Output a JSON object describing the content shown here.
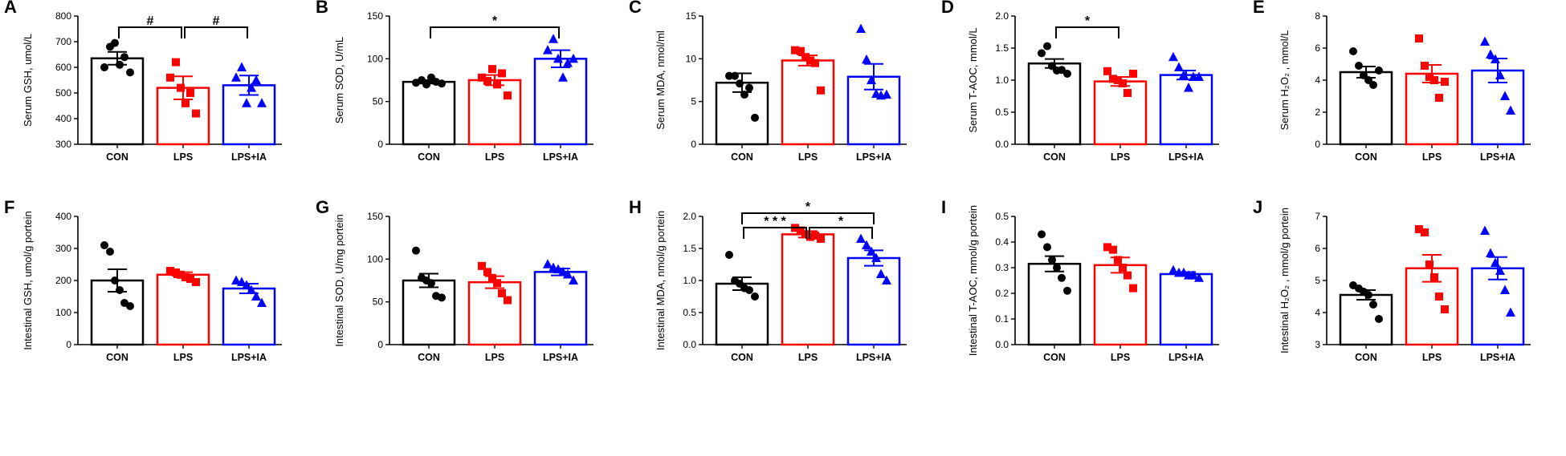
{
  "colors": {
    "CON": "#000000",
    "LPS": "#ff0000",
    "LPS+IA": "#0000ff",
    "axis": "#000000"
  },
  "chart_data": [
    {
      "id": "A",
      "type": "bar",
      "title": "",
      "ylabel": "Serum GSH, umol/L",
      "ylim": [
        300,
        800
      ],
      "yticks": [
        300,
        400,
        500,
        600,
        700,
        800
      ],
      "categories": [
        "CON",
        "LPS",
        "LPS+IA"
      ],
      "markers": [
        "circle",
        "square",
        "triangle"
      ],
      "means": [
        635,
        520,
        530
      ],
      "sem": [
        25,
        45,
        38
      ],
      "points": [
        [
          600,
          680,
          695,
          610,
          640,
          580
        ],
        [
          560,
          620,
          520,
          460,
          500,
          420
        ],
        [
          560,
          600,
          460,
          520,
          550,
          460
        ]
      ],
      "annotations": [
        {
          "from": 0,
          "to": 1,
          "label": "#",
          "level": 0
        },
        {
          "from": 1,
          "to": 2,
          "label": "#",
          "level": 0
        }
      ]
    },
    {
      "id": "B",
      "type": "bar",
      "title": "",
      "ylabel": "Serum SOD, U/mL",
      "ylim": [
        0,
        150
      ],
      "yticks": [
        0,
        50,
        100,
        150
      ],
      "categories": [
        "CON",
        "LPS",
        "LPS+IA"
      ],
      "markers": [
        "circle",
        "square",
        "triangle"
      ],
      "means": [
        73,
        75,
        100
      ],
      "sem": [
        2,
        6,
        10
      ],
      "points": [
        [
          72,
          75,
          70,
          78,
          73,
          71
        ],
        [
          78,
          74,
          88,
          70,
          83,
          57
        ],
        [
          110,
          123,
          100,
          78,
          95,
          100
        ]
      ],
      "annotations": [
        {
          "from": 0,
          "to": 2,
          "label": "*",
          "level": 0
        }
      ]
    },
    {
      "id": "C",
      "type": "bar",
      "title": "",
      "ylabel": "Serum MDA, nmol/ml",
      "ylim": [
        0,
        15
      ],
      "yticks": [
        0,
        5,
        10,
        15
      ],
      "categories": [
        "CON",
        "LPS",
        "LPS+IA"
      ],
      "markers": [
        "circle",
        "square",
        "triangle"
      ],
      "means": [
        7.2,
        9.8,
        7.9
      ],
      "sem": [
        1.1,
        0.6,
        1.5
      ],
      "points": [
        [
          8.0,
          8.0,
          7.1,
          5.8,
          6.6,
          3.1
        ],
        [
          11.0,
          10.9,
          10.2,
          9.8,
          9.5,
          6.3
        ],
        [
          13.5,
          9.9,
          7.5,
          5.9,
          5.7,
          5.8
        ]
      ],
      "annotations": []
    },
    {
      "id": "D",
      "type": "bar",
      "title": "",
      "ylabel": "Serum T-AOC, mmol/L",
      "ylim": [
        0.0,
        2.0
      ],
      "yticks": [
        0.0,
        0.5,
        1.0,
        1.5,
        2.0
      ],
      "categories": [
        "CON",
        "LPS",
        "LPS+IA"
      ],
      "markers": [
        "circle",
        "square",
        "triangle"
      ],
      "means": [
        1.26,
        0.98,
        1.08
      ],
      "sem": [
        0.07,
        0.07,
        0.07
      ],
      "points": [
        [
          1.42,
          1.53,
          1.22,
          1.15,
          1.16,
          1.1
        ],
        [
          1.14,
          1.02,
          1.0,
          0.95,
          0.8,
          1.1
        ],
        [
          1.36,
          1.2,
          1.08,
          0.88,
          1.05,
          1.05
        ]
      ],
      "annotations": [
        {
          "from": 0,
          "to": 1,
          "label": "*",
          "level": 0
        }
      ]
    },
    {
      "id": "E",
      "type": "bar",
      "title": "",
      "ylabel": "Serum H₂O₂ , mmol/L",
      "ylim": [
        0,
        8
      ],
      "yticks": [
        0,
        2,
        4,
        6,
        8
      ],
      "categories": [
        "CON",
        "LPS",
        "LPS+IA"
      ],
      "markers": [
        "circle",
        "square",
        "triangle"
      ],
      "means": [
        4.5,
        4.4,
        4.6
      ],
      "sem": [
        0.35,
        0.55,
        0.75
      ],
      "points": [
        [
          5.8,
          4.9,
          4.3,
          4.0,
          3.7,
          4.6
        ],
        [
          6.6,
          4.9,
          4.2,
          4.0,
          2.9,
          3.9
        ],
        [
          6.4,
          5.6,
          5.3,
          4.3,
          3.0,
          2.1
        ]
      ],
      "annotations": []
    },
    {
      "id": "F",
      "type": "bar",
      "title": "",
      "ylabel": "Intestinal GSH, umol/g portein",
      "ylim": [
        0,
        400
      ],
      "yticks": [
        0,
        100,
        200,
        300,
        400
      ],
      "categories": [
        "CON",
        "LPS",
        "LPS+IA"
      ],
      "markers": [
        "circle",
        "square",
        "triangle"
      ],
      "means": [
        200,
        218,
        175
      ],
      "sem": [
        35,
        8,
        15
      ],
      "points": [
        [
          310,
          290,
          200,
          170,
          130,
          120
        ],
        [
          230,
          225,
          218,
          210,
          205,
          195
        ],
        [
          200,
          195,
          185,
          170,
          150,
          130
        ]
      ],
      "annotations": []
    },
    {
      "id": "G",
      "type": "bar",
      "title": "",
      "ylabel": "Intestinal SOD, U/mg portein",
      "ylim": [
        0,
        150
      ],
      "yticks": [
        0,
        50,
        100,
        150
      ],
      "categories": [
        "CON",
        "LPS",
        "LPS+IA"
      ],
      "markers": [
        "circle",
        "square",
        "triangle"
      ],
      "means": [
        75,
        73,
        85
      ],
      "sem": [
        8,
        7,
        4
      ],
      "points": [
        [
          110,
          78,
          75,
          72,
          57,
          55
        ],
        [
          92,
          85,
          78,
          72,
          60,
          52
        ],
        [
          94,
          90,
          88,
          85,
          82,
          75
        ]
      ],
      "annotations": []
    },
    {
      "id": "H",
      "type": "bar",
      "title": "",
      "ylabel": "Intestinal MDA, nmol/g portein",
      "ylim": [
        0.0,
        2.0
      ],
      "yticks": [
        0.0,
        0.5,
        1.0,
        1.5,
        2.0
      ],
      "categories": [
        "CON",
        "LPS",
        "LPS+IA"
      ],
      "markers": [
        "circle",
        "square",
        "triangle"
      ],
      "means": [
        0.95,
        1.72,
        1.35
      ],
      "sem": [
        0.1,
        0.05,
        0.12
      ],
      "points": [
        [
          1.4,
          1.0,
          0.95,
          0.88,
          0.85,
          0.75
        ],
        [
          1.82,
          1.78,
          1.72,
          1.68,
          1.7,
          1.65
        ],
        [
          1.65,
          1.55,
          1.45,
          1.35,
          1.1,
          1.0
        ]
      ],
      "annotations": [
        {
          "from": 0,
          "to": 2,
          "label": "*",
          "level": 1
        },
        {
          "from": 0,
          "to": 1,
          "label": "* * *",
          "level": 0
        },
        {
          "from": 1,
          "to": 2,
          "label": "*",
          "level": 0
        }
      ]
    },
    {
      "id": "I",
      "type": "bar",
      "title": "",
      "ylabel": "Intestinal T-AOC, mmol/g portein",
      "ylim": [
        0.0,
        0.5
      ],
      "yticks": [
        0.0,
        0.1,
        0.2,
        0.3,
        0.4,
        0.5
      ],
      "categories": [
        "CON",
        "LPS",
        "LPS+IA"
      ],
      "markers": [
        "circle",
        "square",
        "triangle"
      ],
      "means": [
        0.315,
        0.31,
        0.275
      ],
      "sem": [
        0.03,
        0.03,
        0.008
      ],
      "points": [
        [
          0.43,
          0.38,
          0.33,
          0.3,
          0.26,
          0.21
        ],
        [
          0.38,
          0.37,
          0.33,
          0.3,
          0.27,
          0.22
        ],
        [
          0.29,
          0.28,
          0.28,
          0.27,
          0.27,
          0.26
        ]
      ],
      "annotations": []
    },
    {
      "id": "J",
      "type": "bar",
      "title": "",
      "ylabel": "Intestinal H₂O₂ , mmol/g portein",
      "ylim": [
        3,
        7
      ],
      "yticks": [
        3,
        4,
        5,
        6,
        7
      ],
      "categories": [
        "CON",
        "LPS",
        "LPS+IA"
      ],
      "markers": [
        "circle",
        "square",
        "triangle"
      ],
      "means": [
        4.55,
        5.38,
        5.38
      ],
      "sem": [
        0.15,
        0.42,
        0.35
      ],
      "points": [
        [
          4.85,
          4.75,
          4.65,
          4.55,
          4.25,
          3.8
        ],
        [
          6.6,
          6.5,
          5.5,
          5.1,
          4.5,
          4.1
        ],
        [
          6.55,
          5.85,
          5.55,
          5.3,
          4.7,
          4.0
        ]
      ],
      "annotations": []
    }
  ]
}
